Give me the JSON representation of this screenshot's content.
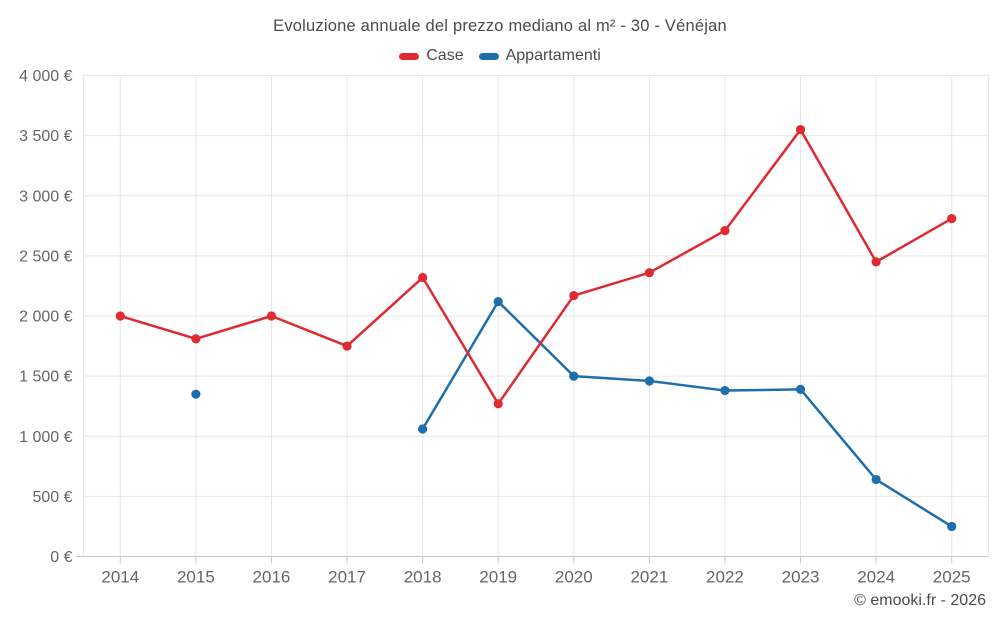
{
  "title": "Evoluzione annuale del prezzo mediano al m² - 30 - Vénéjan",
  "attribution": "© emooki.fr - 2026",
  "legend": [
    {
      "label": "Case",
      "color": "#de2a30"
    },
    {
      "label": "Appartamenti",
      "color": "#1c6fac"
    }
  ],
  "chart_data": {
    "type": "line",
    "title": "Evoluzione annuale del prezzo mediano al m² - 30 - Vénéjan",
    "x": [
      2014,
      2015,
      2016,
      2017,
      2018,
      2019,
      2020,
      2021,
      2022,
      2023,
      2024,
      2025
    ],
    "series": [
      {
        "name": "Case",
        "color": "#de2a30",
        "values": [
          2000,
          1810,
          2000,
          1750,
          2320,
          1270,
          2170,
          2360,
          2710,
          3550,
          2450,
          2810
        ]
      },
      {
        "name": "Appartamenti",
        "color": "#1c6fac",
        "values": [
          null,
          1350,
          null,
          null,
          1060,
          2120,
          1500,
          1460,
          1380,
          1390,
          640,
          250
        ]
      }
    ],
    "ylim": [
      0,
      4000
    ],
    "yticks": [
      {
        "value": 0,
        "label": "0 €"
      },
      {
        "value": 500,
        "label": "500 €"
      },
      {
        "value": 1000,
        "label": "1 000 €"
      },
      {
        "value": 1500,
        "label": "1 500 €"
      },
      {
        "value": 2000,
        "label": "2 000 €"
      },
      {
        "value": 2500,
        "label": "2 500 €"
      },
      {
        "value": 3000,
        "label": "3 000 €"
      },
      {
        "value": 3500,
        "label": "3 500 €"
      },
      {
        "value": 4000,
        "label": "4 000 €"
      }
    ],
    "grid": true,
    "legend_position": "top",
    "style": {
      "grid_color": "#e6e6e6",
      "axis_color": "#c9c9c9",
      "tick_label_color": "#666666",
      "title_color": "#4b4b4b"
    }
  }
}
